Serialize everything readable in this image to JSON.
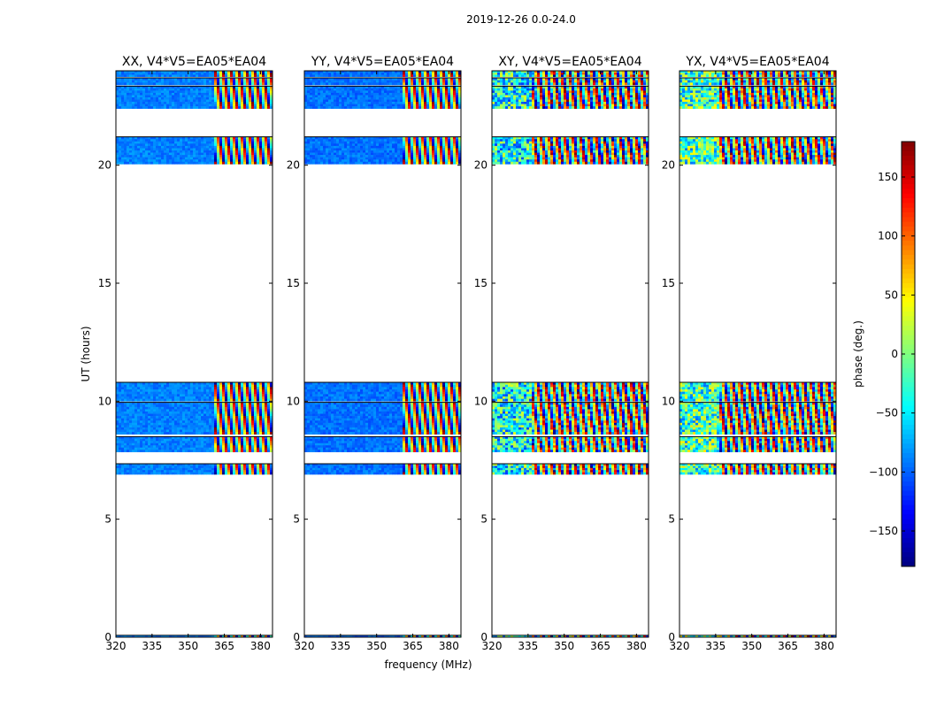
{
  "chart_data": {
    "type": "heatmap",
    "suptitle": "2019-12-26 0.0-24.0",
    "xlabel": "frequency (MHz)",
    "ylabel": "UT (hours)",
    "colorbar_label": "phase (deg.)",
    "xlim": [
      320,
      385
    ],
    "ylim": [
      0,
      24
    ],
    "x_ticks": [
      320,
      335,
      350,
      365,
      380
    ],
    "y_ticks": [
      0,
      5,
      10,
      15,
      20
    ],
    "colorbar_range": [
      -180,
      180
    ],
    "colorbar_ticks": [
      -150,
      -100,
      -50,
      0,
      50,
      100,
      150
    ],
    "colormap": [
      "#00007f",
      "#0000ff",
      "#007fff",
      "#00ffff",
      "#7fff7f",
      "#ffff00",
      "#ff7f00",
      "#ff0000",
      "#7f0000"
    ],
    "time_blocks_hours": [
      [
        0.0,
        0.08
      ],
      [
        6.9,
        7.35
      ],
      [
        7.85,
        8.5
      ],
      [
        8.6,
        9.95
      ],
      [
        10.0,
        10.8
      ],
      [
        20.05,
        21.2
      ],
      [
        22.4,
        23.35
      ],
      [
        23.4,
        23.7
      ],
      [
        23.75,
        24.0
      ]
    ],
    "panels": [
      {
        "title": "XX, V4*V5=EA05*EA04",
        "mean_phase": -90,
        "noise": "low",
        "fringe_start_mhz": 361
      },
      {
        "title": "YY, V4*V5=EA05*EA04",
        "mean_phase": -95,
        "noise": "low",
        "fringe_start_mhz": 361
      },
      {
        "title": "XY, V4*V5=EA05*EA04",
        "mean_phase": -40,
        "noise": "high",
        "fringe_start_mhz": 336
      },
      {
        "title": "YX, V4*V5=EA05*EA04",
        "mean_phase": -20,
        "noise": "high",
        "fringe_start_mhz": 336
      }
    ]
  }
}
